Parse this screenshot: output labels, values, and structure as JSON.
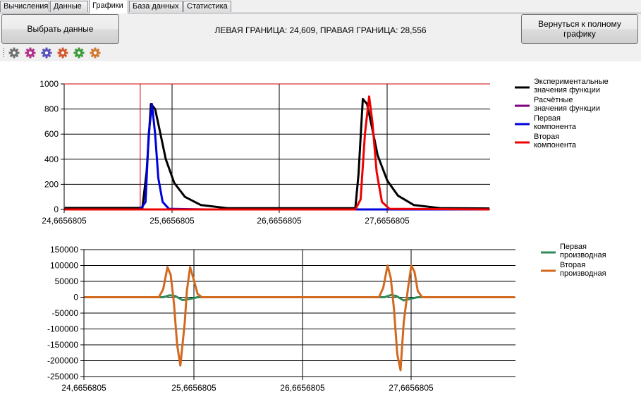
{
  "tabs": [
    {
      "label": "Вычисления"
    },
    {
      "label": "Данные"
    },
    {
      "label": "Графики",
      "active": true
    },
    {
      "label": "База данных"
    },
    {
      "label": "Статистика"
    }
  ],
  "toolbar": {
    "select_data_label": "Выбрать данные",
    "bounds_text": "ЛЕВАЯ ГРАНИЦА: 24,609, ПРАВАЯ ГРАНИЦА: 28,556",
    "back_label": "Вернуться к полному графику",
    "gear_icons": [
      {
        "name": "gear-icon",
        "color": "#707070"
      },
      {
        "name": "gear-icon",
        "color": "#b0308a"
      },
      {
        "name": "gear-icon",
        "color": "#5850b8"
      },
      {
        "name": "gear-icon",
        "color": "#d05a30"
      },
      {
        "name": "gear-icon",
        "color": "#3a9a3a"
      },
      {
        "name": "gear-icon",
        "color": "#d07a30"
      }
    ]
  },
  "chart_data": [
    {
      "type": "line",
      "xlim": [
        24.6656805,
        28.6656805
      ],
      "ylim": [
        0,
        1000
      ],
      "x_ticks": [
        "24,6656805",
        "25,6656805",
        "26,6656805",
        "27,6656805"
      ],
      "y_ticks": [
        "1000",
        "800",
        "600",
        "400",
        "200",
        "0"
      ],
      "grid": true,
      "legend_position": "right",
      "series": [
        {
          "name": "Экспериментальные значения функции",
          "color": "#000000",
          "x": [
            24.67,
            25.4,
            25.44,
            25.48,
            25.52,
            25.57,
            25.62,
            25.7,
            25.8,
            25.95,
            26.2,
            27.4,
            27.43,
            27.47,
            27.51,
            27.56,
            27.61,
            27.7,
            27.8,
            27.95,
            28.2,
            28.66
          ],
          "y": [
            12,
            12,
            300,
            840,
            800,
            600,
            400,
            210,
            100,
            35,
            10,
            10,
            280,
            880,
            840,
            640,
            430,
            230,
            110,
            35,
            10,
            8
          ]
        },
        {
          "name": "Расчётные значения функции",
          "color": "#800080",
          "x": [],
          "y": []
        },
        {
          "name": "Первая компонента",
          "color": "#0000dd",
          "x": [
            24.67,
            25.38,
            25.43,
            25.46,
            25.49,
            25.52,
            25.55,
            25.59,
            25.65,
            26.0,
            27.5,
            28.66
          ],
          "y": [
            0,
            0,
            60,
            600,
            840,
            600,
            250,
            60,
            5,
            0,
            0,
            0
          ]
        },
        {
          "name": "Вторая компонента",
          "color": "#ee0000",
          "x": [
            24.67,
            27.4,
            27.45,
            27.49,
            27.53,
            27.56,
            27.6,
            27.65,
            27.72,
            28.66
          ],
          "y": [
            0,
            0,
            80,
            600,
            900,
            700,
            300,
            60,
            5,
            0
          ]
        }
      ],
      "vertical_markers": [
        25.38
      ],
      "top_marker_line": 1000
    },
    {
      "type": "line",
      "xlim": [
        24.6656805,
        28.6656805
      ],
      "ylim": [
        -250000,
        150000
      ],
      "x_ticks": [
        "24,6656805",
        "25,6656805",
        "26,6656805",
        "27,6656805"
      ],
      "y_ticks": [
        "150000",
        "100000",
        "50000",
        "0",
        "-50000",
        "-100000",
        "-150000",
        "-200000",
        "-250000"
      ],
      "grid": true,
      "legend_position": "right",
      "series": [
        {
          "name": "Первая производная",
          "color": "#2e8b57",
          "x": [
            24.67,
            25.4,
            25.46,
            25.51,
            25.58,
            25.64,
            25.72,
            27.45,
            27.51,
            27.56,
            27.63,
            27.69,
            27.76,
            28.66
          ],
          "y": [
            0,
            0,
            6000,
            4000,
            -9000,
            -6000,
            0,
            0,
            7000,
            4000,
            -10000,
            -5000,
            0,
            0
          ]
        },
        {
          "name": "Вторая производная",
          "color": "#d2691e",
          "x": [
            24.67,
            25.36,
            25.4,
            25.44,
            25.47,
            25.5,
            25.53,
            25.56,
            25.6,
            25.62,
            25.65,
            25.68,
            25.72,
            25.76,
            27.4,
            27.44,
            27.48,
            27.51,
            27.54,
            27.57,
            27.6,
            27.63,
            27.67,
            27.7,
            27.73,
            27.76,
            27.8,
            28.66
          ],
          "y": [
            0,
            0,
            25000,
            95000,
            70000,
            -20000,
            -150000,
            -215000,
            -80000,
            20000,
            95000,
            60000,
            10000,
            0,
            0,
            30000,
            100000,
            60000,
            -40000,
            -180000,
            -230000,
            -80000,
            30000,
            100000,
            80000,
            20000,
            0,
            0
          ]
        }
      ]
    }
  ]
}
